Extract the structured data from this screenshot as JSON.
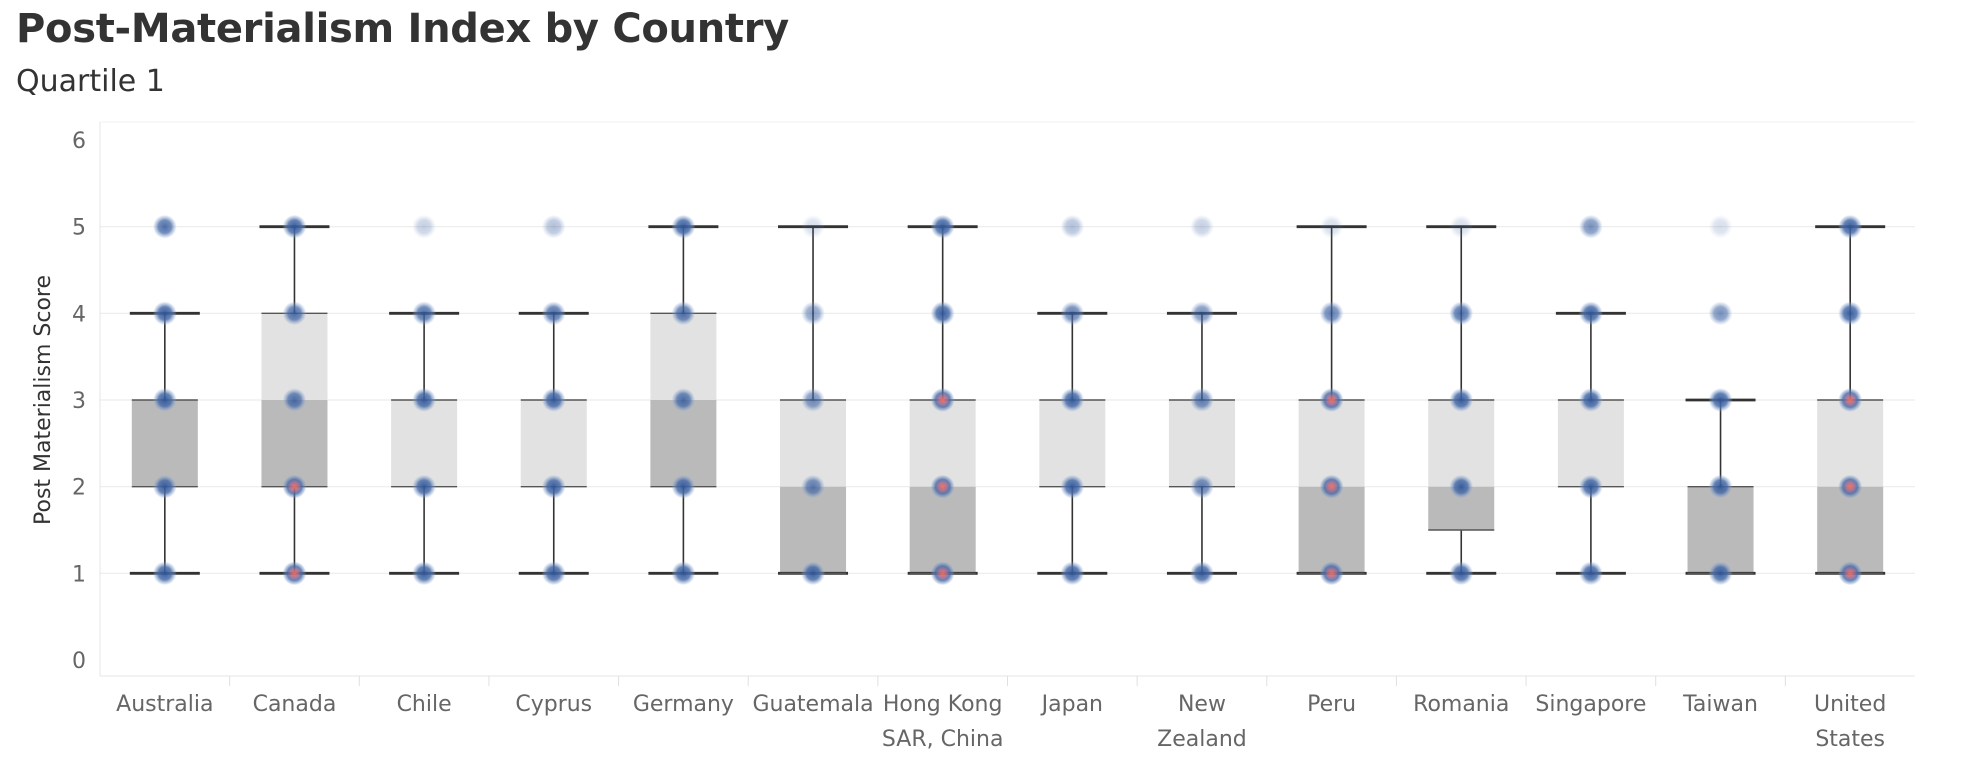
{
  "title": "Post-Materialism Index by Country",
  "subtitle": "Quartile 1",
  "chart_data": {
    "type": "box",
    "title": "Post-Materialism Index by Country",
    "subtitle": "Quartile 1",
    "ylabel": "Post Materialism Score",
    "ylim": [
      0,
      6
    ],
    "yticks": [
      0,
      1,
      2,
      3,
      4,
      5,
      6
    ],
    "grid": true,
    "categories": [
      {
        "name": "Australia",
        "label": [
          "Australia"
        ],
        "min": 1,
        "q1": 2,
        "median": 3,
        "q3": 3,
        "max": 4,
        "points": [
          {
            "y": 1,
            "w": 1
          },
          {
            "y": 2,
            "w": 1
          },
          {
            "y": 3,
            "w": 1
          },
          {
            "y": 4,
            "w": 1
          },
          {
            "y": 5,
            "w": 0.9
          }
        ]
      },
      {
        "name": "Canada",
        "label": [
          "Canada"
        ],
        "min": 1,
        "q1": 2,
        "median": 3,
        "q3": 4,
        "max": 5,
        "points": [
          {
            "y": 1,
            "w": 1
          },
          {
            "y": 2,
            "w": 1
          },
          {
            "y": 3,
            "w": 0.9
          },
          {
            "y": 4,
            "w": 0.9
          },
          {
            "y": 5,
            "w": 1
          }
        ]
      },
      {
        "name": "Chile",
        "label": [
          "Chile"
        ],
        "min": 1,
        "q1": 2,
        "median": 2,
        "q3": 3,
        "max": 4,
        "points": [
          {
            "y": 1,
            "w": 1
          },
          {
            "y": 2,
            "w": 1
          },
          {
            "y": 3,
            "w": 1
          },
          {
            "y": 4,
            "w": 0.9
          },
          {
            "y": 5,
            "w": 0.3
          }
        ]
      },
      {
        "name": "Cyprus",
        "label": [
          "Cyprus"
        ],
        "min": 1,
        "q1": 2,
        "median": 2,
        "q3": 3,
        "max": 4,
        "points": [
          {
            "y": 1,
            "w": 1
          },
          {
            "y": 2,
            "w": 1
          },
          {
            "y": 3,
            "w": 1
          },
          {
            "y": 4,
            "w": 0.9
          },
          {
            "y": 5,
            "w": 0.4
          }
        ]
      },
      {
        "name": "Germany",
        "label": [
          "Germany"
        ],
        "min": 1,
        "q1": 2,
        "median": 3,
        "q3": 4,
        "max": 5,
        "points": [
          {
            "y": 1,
            "w": 1
          },
          {
            "y": 2,
            "w": 1
          },
          {
            "y": 3,
            "w": 0.9
          },
          {
            "y": 4,
            "w": 0.9
          },
          {
            "y": 5,
            "w": 1
          }
        ]
      },
      {
        "name": "Guatemala",
        "label": [
          "Guatemala"
        ],
        "min": 1,
        "q1": 1,
        "median": 2,
        "q3": 3,
        "max": 5,
        "points": [
          {
            "y": 1,
            "w": 1
          },
          {
            "y": 2,
            "w": 0.8
          },
          {
            "y": 3,
            "w": 0.7
          },
          {
            "y": 4,
            "w": 0.6
          },
          {
            "y": 5,
            "w": 0.2
          }
        ]
      },
      {
        "name": "Hong Kong SAR, China",
        "label": [
          "Hong Kong",
          "SAR, China"
        ],
        "min": 1,
        "q1": 1,
        "median": 2,
        "q3": 3,
        "max": 5,
        "points": [
          {
            "y": 1,
            "w": 1
          },
          {
            "y": 2,
            "w": 1
          },
          {
            "y": 3,
            "w": 1
          },
          {
            "y": 4,
            "w": 1
          },
          {
            "y": 5,
            "w": 1
          }
        ]
      },
      {
        "name": "Japan",
        "label": [
          "Japan"
        ],
        "min": 1,
        "q1": 2,
        "median": 2,
        "q3": 3,
        "max": 4,
        "points": [
          {
            "y": 1,
            "w": 1
          },
          {
            "y": 2,
            "w": 1
          },
          {
            "y": 3,
            "w": 1
          },
          {
            "y": 4,
            "w": 0.8
          },
          {
            "y": 5,
            "w": 0.4
          }
        ]
      },
      {
        "name": "New Zealand",
        "label": [
          "New",
          "Zealand"
        ],
        "min": 1,
        "q1": 2,
        "median": 2,
        "q3": 3,
        "max": 4,
        "points": [
          {
            "y": 1,
            "w": 1
          },
          {
            "y": 2,
            "w": 0.8
          },
          {
            "y": 3,
            "w": 0.8
          },
          {
            "y": 4,
            "w": 0.7
          },
          {
            "y": 5,
            "w": 0.3
          }
        ]
      },
      {
        "name": "Peru",
        "label": [
          "Peru"
        ],
        "min": 1,
        "q1": 1,
        "median": 2,
        "q3": 3,
        "max": 5,
        "points": [
          {
            "y": 1,
            "w": 1
          },
          {
            "y": 2,
            "w": 1
          },
          {
            "y": 3,
            "w": 1
          },
          {
            "y": 4,
            "w": 0.8
          },
          {
            "y": 5,
            "w": 0.2
          }
        ]
      },
      {
        "name": "Romania",
        "label": [
          "Romania"
        ],
        "min": 1,
        "q1": 1.5,
        "median": 2,
        "q3": 3,
        "max": 5,
        "points": [
          {
            "y": 1,
            "w": 1
          },
          {
            "y": 2,
            "w": 1
          },
          {
            "y": 3,
            "w": 1
          },
          {
            "y": 4,
            "w": 0.9
          },
          {
            "y": 5,
            "w": 0.2
          }
        ]
      },
      {
        "name": "Singapore",
        "label": [
          "Singapore"
        ],
        "min": 1,
        "q1": 2,
        "median": 2,
        "q3": 3,
        "max": 4,
        "points": [
          {
            "y": 1,
            "w": 1
          },
          {
            "y": 2,
            "w": 1
          },
          {
            "y": 3,
            "w": 1
          },
          {
            "y": 4,
            "w": 1
          },
          {
            "y": 5,
            "w": 0.7
          }
        ]
      },
      {
        "name": "Taiwan",
        "label": [
          "Taiwan"
        ],
        "min": 1,
        "q1": 1,
        "median": 2,
        "q3": 2,
        "max": 3,
        "points": [
          {
            "y": 1,
            "w": 1
          },
          {
            "y": 2,
            "w": 1
          },
          {
            "y": 3,
            "w": 1
          },
          {
            "y": 4,
            "w": 0.7
          },
          {
            "y": 5,
            "w": 0.2
          }
        ]
      },
      {
        "name": "United States",
        "label": [
          "United",
          "States"
        ],
        "min": 1,
        "q1": 1,
        "median": 2,
        "q3": 3,
        "max": 5,
        "points": [
          {
            "y": 1,
            "w": 1
          },
          {
            "y": 2,
            "w": 1
          },
          {
            "y": 3,
            "w": 1
          },
          {
            "y": 4,
            "w": 1
          },
          {
            "y": 5,
            "w": 1
          }
        ]
      }
    ],
    "colors": {
      "box_light": "#e2e2e2",
      "box_dark": "#bababa",
      "whisker": "#333333",
      "point": "#4a6da8",
      "point_hot": "#e8735a",
      "gridline": "#ececec",
      "text": "#666666"
    }
  }
}
